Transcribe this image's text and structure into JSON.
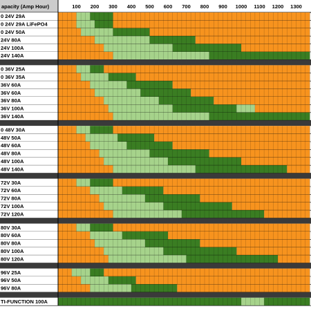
{
  "header": {
    "title": "apacity (Amp Hour)",
    "columns": [
      100,
      200,
      300,
      400,
      500,
      600,
      700,
      800,
      900,
      1000,
      1100,
      1200,
      1300
    ]
  },
  "colors": {
    "O": "#f7931e",
    "L": "#a6d38b",
    "D": "#3a7d22"
  },
  "groups": [
    {
      "rows": [
        {
          "label": "0 24V 29A",
          "runs": [
            [
              "O",
              4
            ],
            [
              "L",
              3
            ],
            [
              "D",
              5
            ],
            [
              "O",
              43
            ]
          ]
        },
        {
          "label": "0 24V 29A LiFePO4",
          "runs": [
            [
              "O",
              4
            ],
            [
              "L",
              4
            ],
            [
              "D",
              4
            ],
            [
              "O",
              43
            ]
          ]
        },
        {
          "label": "0 24V 50A",
          "runs": [
            [
              "O",
              5
            ],
            [
              "L",
              7
            ],
            [
              "D",
              8
            ],
            [
              "O",
              35
            ]
          ]
        },
        {
          "label": "24V 80A",
          "runs": [
            [
              "O",
              8
            ],
            [
              "L",
              12
            ],
            [
              "D",
              10
            ],
            [
              "O",
              25
            ]
          ]
        },
        {
          "label": " 24V 100A",
          "runs": [
            [
              "O",
              10
            ],
            [
              "L",
              15
            ],
            [
              "D",
              15
            ],
            [
              "O",
              15
            ]
          ]
        },
        {
          "label": "24V 140A",
          "runs": [
            [
              "O",
              12
            ],
            [
              "L",
              21
            ],
            [
              "D",
              22
            ]
          ]
        }
      ]
    },
    {
      "rows": [
        {
          "label": "0 36V 25A",
          "runs": [
            [
              "O",
              4
            ],
            [
              "L",
              3
            ],
            [
              "D",
              3
            ],
            [
              "O",
              45
            ]
          ]
        },
        {
          "label": "0 36V 35A",
          "runs": [
            [
              "O",
              5
            ],
            [
              "L",
              6
            ],
            [
              "D",
              6
            ],
            [
              "O",
              38
            ]
          ]
        },
        {
          "label": "36V 60A",
          "runs": [
            [
              "O",
              7
            ],
            [
              "L",
              8
            ],
            [
              "D",
              10
            ],
            [
              "O",
              30
            ]
          ]
        },
        {
          "label": "36V 60A",
          "runs": [
            [
              "O",
              8
            ],
            [
              "L",
              10
            ],
            [
              "D",
              11
            ],
            [
              "O",
              26
            ]
          ]
        },
        {
          "label": "36V 80A",
          "runs": [
            [
              "O",
              10
            ],
            [
              "L",
              12
            ],
            [
              "D",
              12
            ],
            [
              "O",
              21
            ]
          ]
        },
        {
          "label": " 36V 100A",
          "runs": [
            [
              "O",
              11
            ],
            [
              "L",
              14
            ],
            [
              "D",
              14
            ],
            [
              "L",
              4
            ],
            [
              "O",
              12
            ]
          ]
        },
        {
          "label": "36V 140A",
          "runs": [
            [
              "O",
              12
            ],
            [
              "L",
              21
            ],
            [
              "D",
              22
            ]
          ]
        }
      ]
    },
    {
      "rows": [
        {
          "label": "0 48V 30A",
          "runs": [
            [
              "O",
              4
            ],
            [
              "L",
              3
            ],
            [
              "D",
              5
            ],
            [
              "O",
              43
            ]
          ]
        },
        {
          "label": "48V 50A",
          "runs": [
            [
              "O",
              6
            ],
            [
              "L",
              7
            ],
            [
              "D",
              8
            ],
            [
              "O",
              34
            ]
          ]
        },
        {
          "label": "48V 60A",
          "runs": [
            [
              "O",
              7
            ],
            [
              "L",
              8
            ],
            [
              "D",
              10
            ],
            [
              "O",
              30
            ]
          ]
        },
        {
          "label": "48V 80A",
          "runs": [
            [
              "O",
              9
            ],
            [
              "L",
              11
            ],
            [
              "D",
              13
            ],
            [
              "O",
              22
            ]
          ]
        },
        {
          "label": " 48V 100A",
          "runs": [
            [
              "O",
              10
            ],
            [
              "L",
              14
            ],
            [
              "D",
              16
            ],
            [
              "O",
              15
            ]
          ]
        },
        {
          "label": "48V 140A",
          "runs": [
            [
              "O",
              12
            ],
            [
              "L",
              18
            ],
            [
              "D",
              20
            ],
            [
              "O",
              5
            ]
          ]
        }
      ]
    },
    {
      "rows": [
        {
          "label": "72V 30A",
          "runs": [
            [
              "O",
              4
            ],
            [
              "L",
              3
            ],
            [
              "D",
              5
            ],
            [
              "O",
              43
            ]
          ]
        },
        {
          "label": "72V 60A",
          "runs": [
            [
              "O",
              7
            ],
            [
              "L",
              7
            ],
            [
              "D",
              9
            ],
            [
              "O",
              32
            ]
          ]
        },
        {
          "label": "72V 80A",
          "runs": [
            [
              "O",
              9
            ],
            [
              "L",
              10
            ],
            [
              "D",
              12
            ],
            [
              "O",
              24
            ]
          ]
        },
        {
          "label": "72V 100A",
          "runs": [
            [
              "O",
              10
            ],
            [
              "L",
              13
            ],
            [
              "D",
              15
            ],
            [
              "O",
              17
            ]
          ]
        },
        {
          "label": " 72V 120A",
          "runs": [
            [
              "O",
              12
            ],
            [
              "L",
              15
            ],
            [
              "D",
              18
            ],
            [
              "O",
              10
            ]
          ]
        }
      ]
    },
    {
      "rows": [
        {
          "label": "80V 30A",
          "runs": [
            [
              "O",
              4
            ],
            [
              "L",
              3
            ],
            [
              "D",
              5
            ],
            [
              "O",
              43
            ]
          ]
        },
        {
          "label": "80V 60A",
          "runs": [
            [
              "O",
              7
            ],
            [
              "L",
              7
            ],
            [
              "D",
              10
            ],
            [
              "O",
              31
            ]
          ]
        },
        {
          "label": "80V 80A",
          "runs": [
            [
              "O",
              8
            ],
            [
              "L",
              11
            ],
            [
              "D",
              12
            ],
            [
              "O",
              24
            ]
          ]
        },
        {
          "label": "80V 100A",
          "runs": [
            [
              "O",
              10
            ],
            [
              "L",
              13
            ],
            [
              "D",
              16
            ],
            [
              "O",
              16
            ]
          ]
        },
        {
          "label": "80V 120A",
          "runs": [
            [
              "O",
              11
            ],
            [
              "L",
              17
            ],
            [
              "D",
              20
            ],
            [
              "O",
              7
            ]
          ]
        }
      ]
    },
    {
      "rows": [
        {
          "label": "96V 25A",
          "runs": [
            [
              "O",
              3
            ],
            [
              "L",
              4
            ],
            [
              "D",
              3
            ],
            [
              "O",
              45
            ]
          ]
        },
        {
          "label": "96V 50A",
          "runs": [
            [
              "O",
              5
            ],
            [
              "L",
              6
            ],
            [
              "D",
              6
            ],
            [
              "O",
              38
            ]
          ]
        },
        {
          "label": "96V 80A",
          "runs": [
            [
              "O",
              7
            ],
            [
              "L",
              9
            ],
            [
              "D",
              10
            ],
            [
              "O",
              29
            ]
          ]
        }
      ]
    },
    {
      "rows": [
        {
          "label": "TI-FUNCTION 100A",
          "runs": [
            [
              "D",
              40
            ],
            [
              "L",
              5
            ],
            [
              "D",
              10
            ]
          ]
        }
      ]
    }
  ]
}
